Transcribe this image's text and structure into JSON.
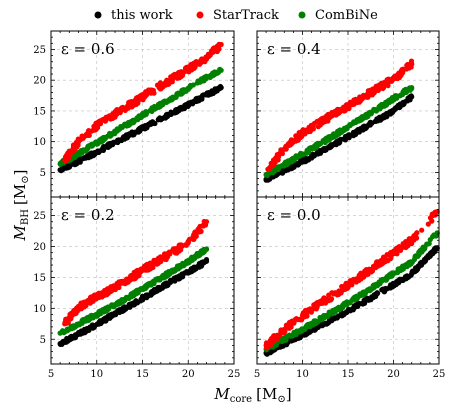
{
  "chart_data": {
    "type": "scatter",
    "layout": "2x2 panels, shared axes",
    "xlabel_main": "M",
    "xlabel_sub": "core",
    "xlabel_unit": "[M",
    "xlabel_unit_sub": "⊙",
    "xlabel_unit_close": "]",
    "ylabel_main": "M",
    "ylabel_sub": "BH",
    "ylabel_unit": "[M",
    "ylabel_unit_sub": "⊙",
    "ylabel_unit_close": "]",
    "xlim": [
      5,
      25
    ],
    "ylim": [
      1,
      28
    ],
    "xticks": [
      5,
      10,
      15,
      20,
      25
    ],
    "yticks": [
      5,
      10,
      15,
      20,
      25
    ],
    "grid": true,
    "legend": {
      "placement": "top-center",
      "entries": [
        {
          "label": "this work",
          "color": "#000000"
        },
        {
          "label": "StarTrack",
          "color": "#ff0000"
        },
        {
          "label": "ComBiNe",
          "color": "#008000"
        }
      ]
    },
    "panels": [
      {
        "label": "ε = 0.6",
        "series": [
          {
            "name": "this work",
            "color": "#000000",
            "x": [
              6,
              8,
              10,
              12,
              14,
              16,
              18,
              20,
              22,
              23.6
            ],
            "y": [
              5.4,
              6.8,
              8.3,
              9.9,
              11.4,
              12.9,
              14.5,
              16.0,
              17.6,
              18.8
            ]
          },
          {
            "name": "ComBiNe",
            "color": "#008000",
            "x": [
              6,
              8,
              10,
              12,
              14,
              16,
              18,
              20,
              22,
              23.6
            ],
            "y": [
              6.4,
              8.0,
              9.8,
              11.6,
              13.4,
              15.2,
              16.9,
              18.7,
              20.4,
              21.6
            ]
          },
          {
            "name": "StarTrack",
            "color": "#ff0000",
            "x": [
              6.5,
              8,
              10,
              12,
              14,
              16,
              18,
              20,
              22,
              23.6
            ],
            "y": [
              7.0,
              10.0,
              12.6,
              14.5,
              16.3,
              18.2,
              20.0,
              21.8,
              23.6,
              25.8
            ]
          }
        ]
      },
      {
        "label": "ε = 0.4",
        "series": [
          {
            "name": "this work",
            "color": "#000000",
            "x": [
              6,
              8,
              10,
              12,
              14,
              16,
              18,
              20,
              22
            ],
            "y": [
              3.9,
              5.3,
              6.8,
              8.4,
              10.0,
              11.6,
              13.3,
              15.0,
              17.3
            ]
          },
          {
            "name": "ComBiNe",
            "color": "#008000",
            "x": [
              6,
              8,
              10,
              12,
              14,
              16,
              18,
              20,
              22
            ],
            "y": [
              4.6,
              6.3,
              8.0,
              9.7,
              11.5,
              13.3,
              15.1,
              17.0,
              18.8
            ]
          },
          {
            "name": "StarTrack",
            "color": "#ff0000",
            "x": [
              6.2,
              8,
              10,
              12,
              14,
              16,
              18,
              20,
              22
            ],
            "y": [
              5.5,
              8.8,
              11.4,
              13.2,
              14.9,
              16.7,
              18.4,
              20.2,
              22.6
            ]
          }
        ]
      },
      {
        "label": "ε = 0.2",
        "series": [
          {
            "name": "this work",
            "color": "#000000",
            "x": [
              6,
              8,
              10,
              12,
              14,
              16,
              18,
              20,
              22
            ],
            "y": [
              4.3,
              5.8,
              7.4,
              9.1,
              10.8,
              12.5,
              14.2,
              15.9,
              17.6
            ]
          },
          {
            "name": "ComBiNe",
            "color": "#008000",
            "x": [
              6,
              8,
              10,
              12,
              14,
              16,
              18,
              20,
              22
            ],
            "y": [
              6.0,
              7.5,
              9.0,
              10.6,
              12.3,
              14.0,
              15.8,
              17.6,
              19.6
            ]
          },
          {
            "name": "StarTrack",
            "color": "#ff0000",
            "x": [
              6.5,
              8,
              10,
              12,
              14,
              16,
              18,
              20,
              22
            ],
            "y": [
              7.5,
              10.2,
              11.8,
              13.5,
              15.2,
              17.0,
              18.8,
              20.6,
              24.0
            ]
          }
        ]
      },
      {
        "label": "ε = 0.0",
        "series": [
          {
            "name": "this work",
            "color": "#000000",
            "x": [
              6,
              8,
              10,
              12,
              14,
              16,
              18,
              20,
              22,
              24.8
            ],
            "y": [
              2.8,
              4.2,
              5.7,
              7.2,
              8.8,
              10.4,
              12.1,
              13.8,
              15.6,
              19.8
            ]
          },
          {
            "name": "ComBiNe",
            "color": "#008000",
            "x": [
              6,
              8,
              10,
              12,
              14,
              16,
              18,
              20,
              22,
              24.8
            ],
            "y": [
              3.4,
              5.0,
              6.6,
              8.3,
              10.0,
              11.8,
              13.7,
              15.6,
              17.5,
              22.2
            ]
          },
          {
            "name": "StarTrack",
            "color": "#ff0000",
            "x": [
              6,
              8,
              10,
              12,
              14,
              16,
              18,
              20,
              22,
              24.8
            ],
            "y": [
              4.0,
              6.6,
              8.8,
              10.8,
              12.8,
              14.8,
              16.8,
              18.9,
              21.0,
              25.6
            ]
          }
        ]
      }
    ]
  }
}
